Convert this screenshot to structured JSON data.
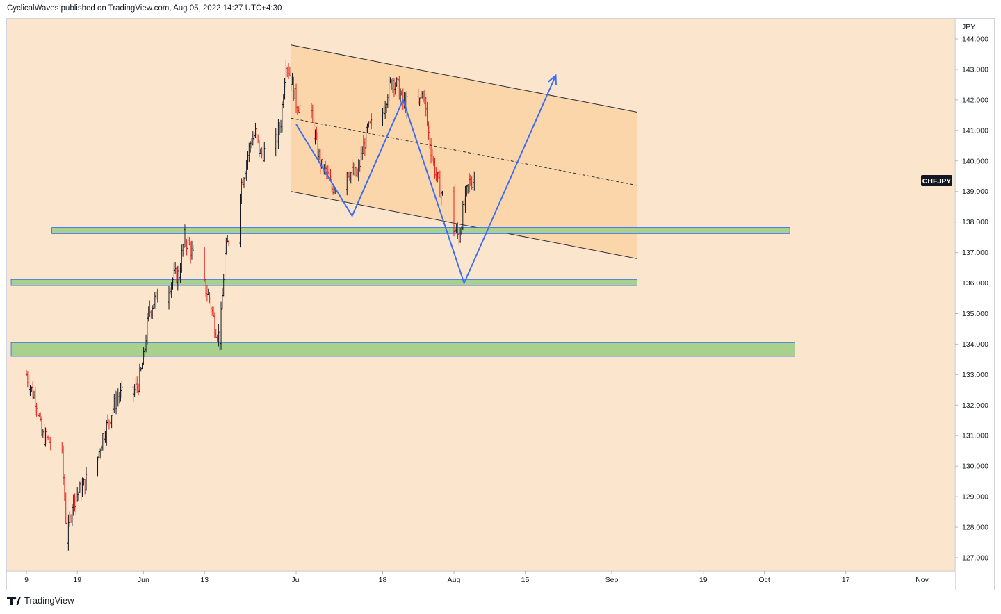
{
  "header": {
    "published_by": "CyclicalWaves published on TradingView.com, Aug 05, 2022 14:27 UTC+4:30"
  },
  "footer": {
    "brand": "TradingView",
    "logo_icon": "tradingview-logo-icon"
  },
  "chart_data": {
    "type": "candlestick",
    "symbol": "CHFJPY",
    "currency": "JPY",
    "y_axis": {
      "ticks": [
        "144.000",
        "143.000",
        "142.000",
        "141.000",
        "140.000",
        "139.000",
        "138.000",
        "137.000",
        "136.000",
        "135.000",
        "134.000",
        "133.000",
        "132.000",
        "131.000",
        "130.000",
        "129.000",
        "128.000",
        "127.000"
      ],
      "range": [
        126.7,
        144.5
      ]
    },
    "x_axis": {
      "ticks": [
        "9",
        "19",
        "Jun",
        "13",
        "Jul",
        "18",
        "Aug",
        "15",
        "Sep",
        "19",
        "Oct",
        "17",
        "Nov"
      ]
    },
    "price_path": [
      [
        "May 9",
        133.0
      ],
      [
        "May 10",
        132.5
      ],
      [
        "May 11",
        132.1
      ],
      [
        "May 12",
        131.0
      ],
      [
        "May 13",
        130.9
      ],
      [
        "May 16",
        130.3
      ],
      [
        "May 17",
        127.6
      ],
      [
        "May 18",
        128.8
      ],
      [
        "May 19",
        129.1
      ],
      [
        "May 20",
        129.3
      ],
      [
        "May 23",
        130.3
      ],
      [
        "May 24",
        131.0
      ],
      [
        "May 25",
        131.4
      ],
      [
        "May 26",
        131.9
      ],
      [
        "May 27",
        132.3
      ],
      [
        "May 30",
        132.4
      ],
      [
        "May 31",
        132.7
      ],
      [
        "Jun 1",
        133.5
      ],
      [
        "Jun 2",
        135.0
      ],
      [
        "Jun 3",
        135.4
      ],
      [
        "Jun 6",
        135.9
      ],
      [
        "Jun 7",
        136.2
      ],
      [
        "Jun 8",
        136.3
      ],
      [
        "Jun 9",
        137.5
      ],
      [
        "Jun 10",
        137.2
      ],
      [
        "Jun 13",
        135.9
      ],
      [
        "Jun 14",
        135.5
      ],
      [
        "Jun 15",
        134.6
      ],
      [
        "Jun 16",
        134.2
      ],
      [
        "Jun 17",
        136.9
      ],
      [
        "Jun 20",
        139.1
      ],
      [
        "Jun 21",
        139.8
      ],
      [
        "Jun 22",
        140.6
      ],
      [
        "Jun 23",
        140.9
      ],
      [
        "Jun 24",
        140.2
      ],
      [
        "Jun 27",
        140.6
      ],
      [
        "Jun 28",
        141.3
      ],
      [
        "Jun 29",
        143.3
      ],
      [
        "Jun 30",
        142.7
      ],
      [
        "Jul 1",
        141.9
      ],
      [
        "Jul 4",
        141.4
      ],
      [
        "Jul 5",
        140.5
      ],
      [
        "Jul 6",
        139.8
      ],
      [
        "Jul 7",
        139.6
      ],
      [
        "Jul 8",
        139.1
      ],
      [
        "Jul 11",
        139.7
      ],
      [
        "Jul 12",
        139.6
      ],
      [
        "Jul 13",
        139.5
      ],
      [
        "Jul 14",
        140.3
      ],
      [
        "Jul 15",
        141.0
      ],
      [
        "Jul 18",
        141.6
      ],
      [
        "Jul 19",
        142.3
      ],
      [
        "Jul 20",
        142.7
      ],
      [
        "Jul 21",
        142.4
      ],
      [
        "Jul 22",
        141.9
      ],
      [
        "Jul 25",
        141.8
      ],
      [
        "Jul 26",
        142.3
      ],
      [
        "Jul 27",
        140.9
      ],
      [
        "Jul 28",
        139.9
      ],
      [
        "Jul 29",
        139.2
      ],
      [
        "Aug 1",
        137.8
      ],
      [
        "Aug 2",
        137.5
      ],
      [
        "Aug 3",
        138.6
      ],
      [
        "Aug 4",
        139.3
      ],
      [
        "Aug 5",
        139.4
      ]
    ],
    "drawings": {
      "descending_channel": {
        "upper": [
          [
            "Jun 30",
            143.8
          ],
          [
            "Sep 6",
            141.6
          ]
        ],
        "mid": [
          [
            "Jun 30",
            141.4
          ],
          [
            "Sep 6",
            139.2
          ]
        ],
        "lower": [
          [
            "Jun 30",
            139.0
          ],
          [
            "Sep 6",
            136.8
          ]
        ],
        "fill": "#fbd4a4"
      },
      "zones": [
        {
          "from": "May 14",
          "to": "Oct 6",
          "low": 137.62,
          "high": 137.82
        },
        {
          "from": "May 6",
          "to": "Sep 6",
          "low": 135.92,
          "high": 136.12
        },
        {
          "from": "May 6",
          "to": "Oct 7",
          "low": 133.6,
          "high": 134.05
        }
      ],
      "zone_color": "#a9d18e",
      "wave_projection": {
        "points": [
          [
            "Jul 1",
            141.2
          ],
          [
            "Jul 12",
            138.2
          ],
          [
            "Jul 22",
            142.0
          ],
          [
            "Aug 3",
            136.0
          ],
          [
            "Aug 21",
            142.8
          ]
        ],
        "color": "#3b6ef5"
      }
    },
    "colors": {
      "background": "#fce5cd",
      "candle_up": "#131722",
      "candle_down": "#e0201b",
      "symbol_badge_bg": "#131722",
      "symbol_badge_text": "#ffffff"
    }
  }
}
